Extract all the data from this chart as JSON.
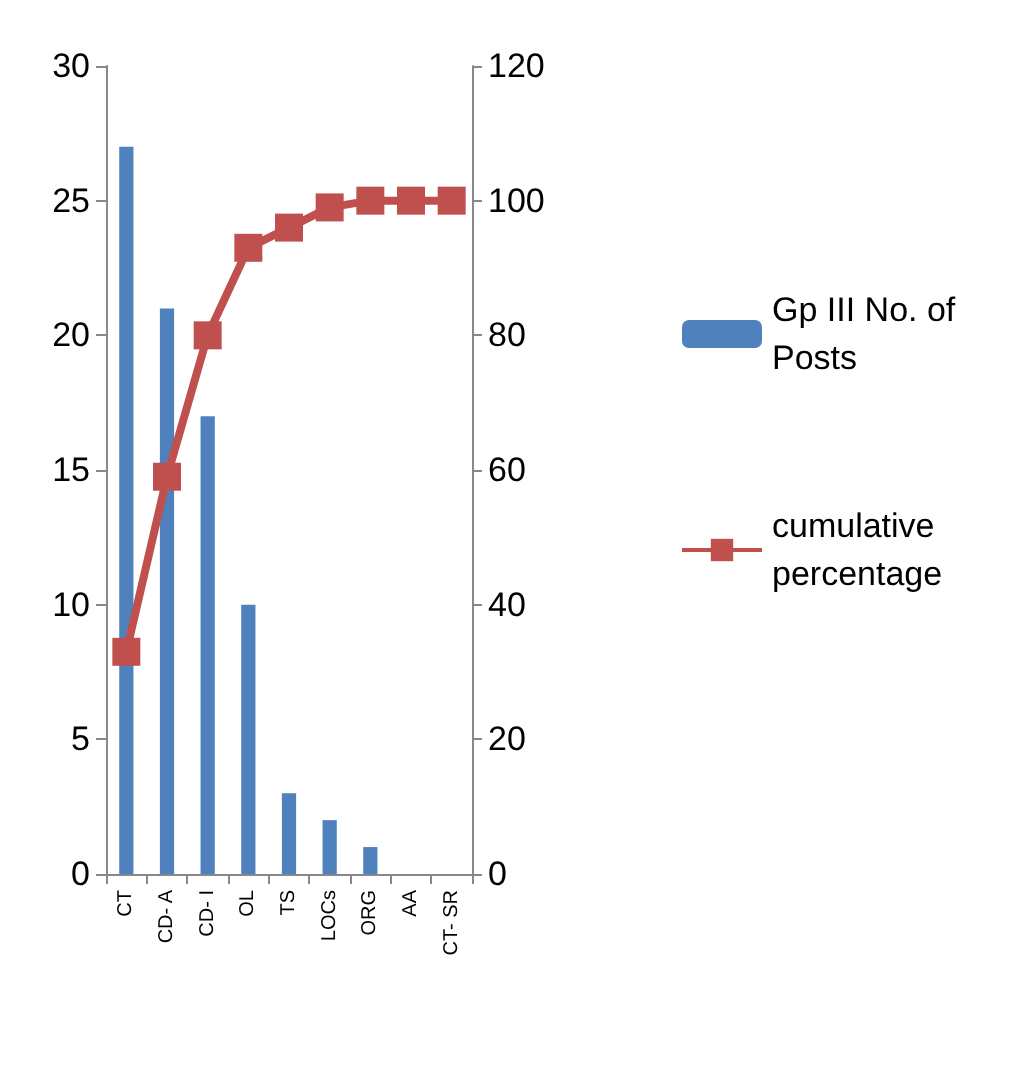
{
  "chart_data": {
    "type": "bar",
    "categories": [
      "CT",
      "CD- A",
      "CD- I",
      "OL",
      "TS",
      "LOCs",
      "ORG",
      "AA",
      "CT- SR"
    ],
    "series": [
      {
        "name": "Gp III No. of Posts",
        "color": "#4f81bd",
        "values": [
          27,
          21,
          17,
          10,
          3,
          2,
          1,
          0,
          0
        ]
      },
      {
        "name": "cumulative percentage",
        "type": "line",
        "axis": "y2",
        "color": "#c0504d",
        "marker": "square",
        "values": [
          33,
          59,
          80,
          93,
          96,
          99,
          100,
          100,
          100
        ]
      }
    ],
    "ylim": [
      0,
      30
    ],
    "yticks": [
      0,
      5,
      10,
      15,
      20,
      25,
      30
    ],
    "y2lim": [
      0,
      120
    ],
    "y2ticks": [
      0,
      20,
      40,
      60,
      80,
      100,
      120
    ],
    "grid": false,
    "legend": "right"
  }
}
